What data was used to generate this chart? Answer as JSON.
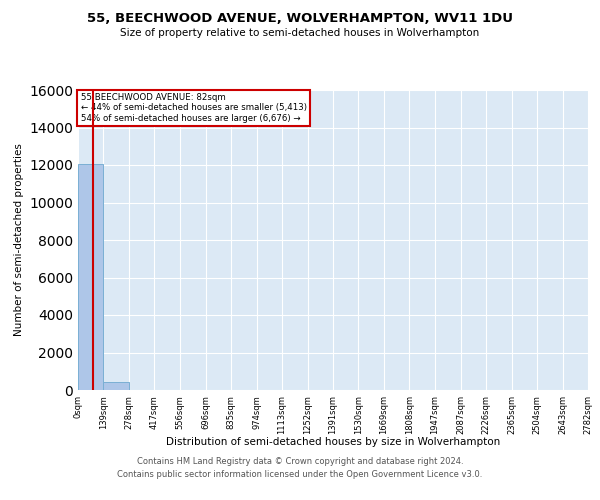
{
  "title1": "55, BEECHWOOD AVENUE, WOLVERHAMPTON, WV11 1DU",
  "title2": "Size of property relative to semi-detached houses in Wolverhampton",
  "xlabel": "Distribution of semi-detached houses by size in Wolverhampton",
  "ylabel": "Number of semi-detached properties",
  "footer1": "Contains HM Land Registry data © Crown copyright and database right 2024.",
  "footer2": "Contains public sector information licensed under the Open Government Licence v3.0.",
  "annotation_line1": "55 BEECHWOOD AVENUE: 82sqm",
  "annotation_line2": "← 44% of semi-detached houses are smaller (5,413)",
  "annotation_line3": "54% of semi-detached houses are larger (6,676) →",
  "bar_color": "#aec6e8",
  "bar_edge_color": "#7aafd4",
  "marker_color": "#cc0000",
  "annotation_box_color": "#cc0000",
  "background_color": "#dce9f5",
  "ylim": [
    0,
    16000
  ],
  "property_size": 82,
  "bin_edges": [
    0,
    139,
    278,
    417,
    556,
    696,
    835,
    974,
    1113,
    1252,
    1391,
    1530,
    1669,
    1808,
    1947,
    2087,
    2226,
    2365,
    2504,
    2643,
    2782
  ],
  "bin_labels": [
    "0sqm",
    "139sqm",
    "278sqm",
    "417sqm",
    "556sqm",
    "696sqm",
    "835sqm",
    "974sqm",
    "1113sqm",
    "1252sqm",
    "1391sqm",
    "1530sqm",
    "1669sqm",
    "1808sqm",
    "1947sqm",
    "2087sqm",
    "2226sqm",
    "2365sqm",
    "2504sqm",
    "2643sqm",
    "2782sqm"
  ],
  "bar_heights": [
    12050,
    450,
    0,
    0,
    0,
    0,
    0,
    0,
    0,
    0,
    0,
    0,
    0,
    0,
    0,
    0,
    0,
    0,
    0,
    0
  ]
}
